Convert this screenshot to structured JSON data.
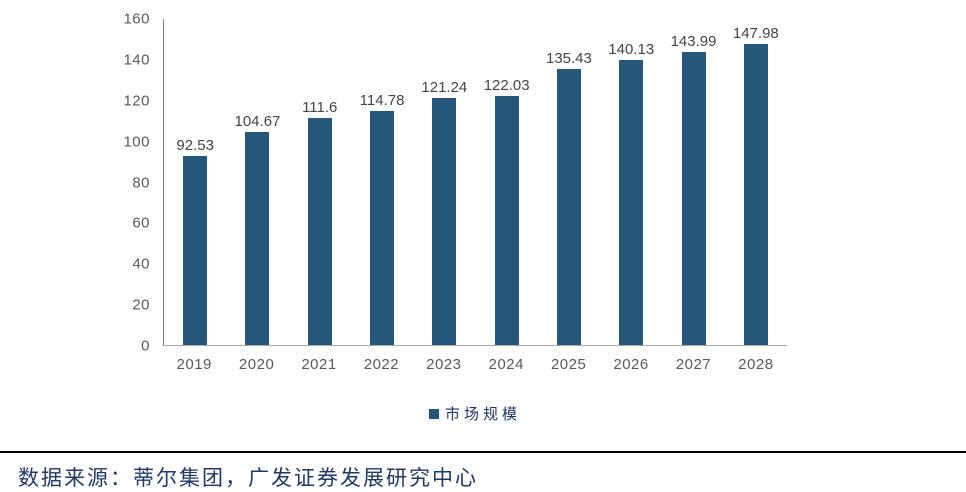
{
  "chart_data": {
    "type": "bar",
    "title": "",
    "categories": [
      "2019",
      "2020",
      "2021",
      "2022",
      "2023",
      "2024",
      "2025",
      "2026",
      "2027",
      "2028"
    ],
    "series": [
      {
        "name": "市场规模",
        "values": [
          92.53,
          104.67,
          111.6,
          114.78,
          121.24,
          122.03,
          135.43,
          140.13,
          143.99,
          147.98
        ]
      }
    ],
    "value_labels": [
      "92.53",
      "104.67",
      "111.6",
      "114.78",
      "121.24",
      "122.03",
      "135.43",
      "140.13",
      "143.99",
      "147.98"
    ],
    "xlabel": "",
    "ylabel": "",
    "ylim": [
      0,
      160
    ],
    "yticks": [
      0,
      20,
      40,
      60,
      80,
      100,
      120,
      140,
      160
    ],
    "grid": false,
    "legend_position": "bottom",
    "bar_color": "#26567a"
  },
  "legend": {
    "label": "市场规模"
  },
  "footer": {
    "source_text": "数据来源：蒂尔集团，广发证券发展研究中心"
  },
  "colors": {
    "bar": "#26567a",
    "axis_line": "#7f7f7f",
    "baseline": "#a6a6a6",
    "tick_label": "#595959",
    "data_label": "#444444",
    "footer_text": "#1f3864",
    "divider": "#000000"
  }
}
